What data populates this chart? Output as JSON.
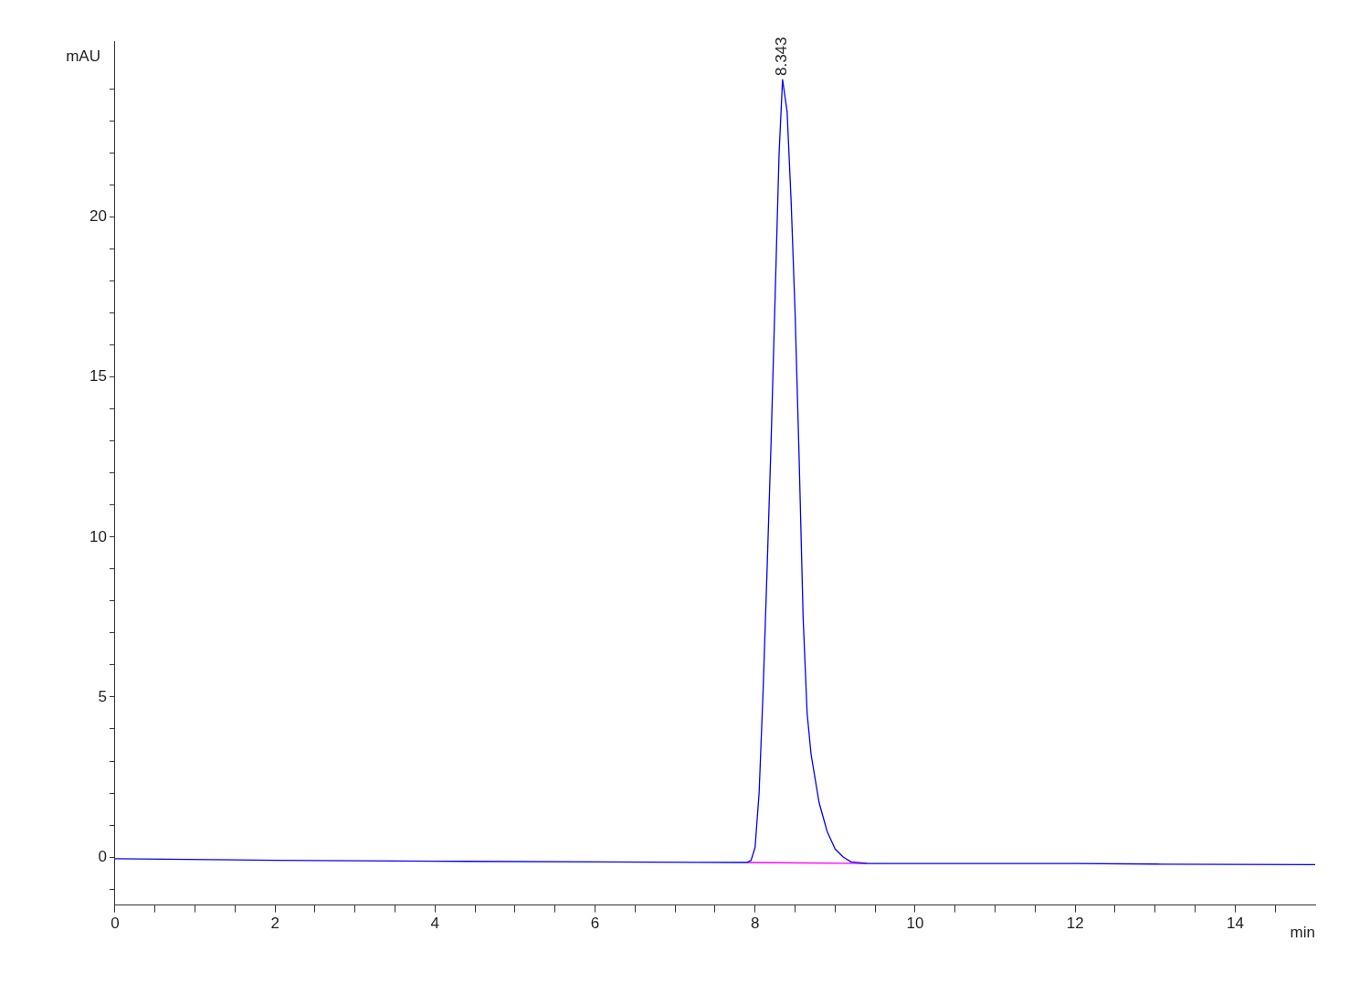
{
  "chart_data": {
    "type": "line",
    "ylabel": "mAU",
    "xlabel": "min",
    "xlim": [
      0,
      15
    ],
    "ylim": [
      -1.5,
      25.5
    ],
    "xticks": [
      0,
      {
        "value": 0.5,
        "label": null
      },
      {
        "value": 1,
        "label": null
      },
      {
        "value": 1.5,
        "label": null
      },
      2,
      {
        "value": 2.5,
        "label": null
      },
      {
        "value": 3,
        "label": null
      },
      {
        "value": 3.5,
        "label": null
      },
      4,
      {
        "value": 4.5,
        "label": null
      },
      {
        "value": 5,
        "label": null
      },
      {
        "value": 5.5,
        "label": null
      },
      6,
      {
        "value": 6.5,
        "label": null
      },
      {
        "value": 7,
        "label": null
      },
      {
        "value": 7.5,
        "label": null
      },
      8,
      {
        "value": 8.5,
        "label": null
      },
      {
        "value": 9,
        "label": null
      },
      {
        "value": 9.5,
        "label": null
      },
      10,
      {
        "value": 10.5,
        "label": null
      },
      {
        "value": 11,
        "label": null
      },
      {
        "value": 11.5,
        "label": null
      },
      12,
      {
        "value": 12.5,
        "label": null
      },
      {
        "value": 13,
        "label": null
      },
      {
        "value": 13.5,
        "label": null
      },
      14,
      {
        "value": 14.5,
        "label": null
      }
    ],
    "yticks": [
      {
        "value": -1,
        "label": null
      },
      0,
      {
        "value": 1,
        "label": null
      },
      {
        "value": 2,
        "label": null
      },
      {
        "value": 3,
        "label": null
      },
      {
        "value": 4,
        "label": null
      },
      5,
      {
        "value": 6,
        "label": null
      },
      {
        "value": 7,
        "label": null
      },
      {
        "value": 8,
        "label": null
      },
      {
        "value": 9,
        "label": null
      },
      10,
      {
        "value": 11,
        "label": null
      },
      {
        "value": 12,
        "label": null
      },
      {
        "value": 13,
        "label": null
      },
      {
        "value": 14,
        "label": null
      },
      15,
      {
        "value": 16,
        "label": null
      },
      {
        "value": 17,
        "label": null
      },
      {
        "value": 18,
        "label": null
      },
      {
        "value": 19,
        "label": null
      },
      20,
      {
        "value": 21,
        "label": null
      },
      {
        "value": 22,
        "label": null
      },
      {
        "value": 23,
        "label": null
      },
      {
        "value": 24,
        "label": null
      }
    ],
    "grid": false,
    "legend": false,
    "marker": "none",
    "line_style": "solid",
    "series": [
      {
        "color": "#0000ff",
        "x": [
          0,
          2,
          4,
          6,
          7.9,
          7.95,
          8.0,
          8.05,
          8.1,
          8.15,
          8.2,
          8.25,
          8.3,
          8.343,
          8.4,
          8.45,
          8.5,
          8.55,
          8.6,
          8.65,
          8.7,
          8.8,
          8.9,
          9.0,
          9.1,
          9.2,
          9.4,
          10,
          11,
          11.6,
          12,
          13,
          14,
          15
        ],
        "values": [
          -0.05,
          -0.1,
          -0.13,
          -0.15,
          -0.17,
          -0.1,
          0.3,
          2.0,
          5.2,
          9,
          13,
          17.5,
          22,
          24.3,
          23.3,
          20.5,
          17,
          12.5,
          7.5,
          4.5,
          3.2,
          1.7,
          0.8,
          0.25,
          0,
          -0.15,
          -0.2,
          -0.2,
          -0.2,
          -0.2,
          -0.2,
          -0.22,
          -0.23,
          -0.24
        ]
      },
      {
        "color": "#ff00ff",
        "x": [
          7.9,
          9.4
        ],
        "values": [
          -0.17,
          -0.2
        ]
      }
    ],
    "annotations": [
      {
        "text": "8.343",
        "x": 8.343,
        "y": 24.3
      }
    ]
  }
}
